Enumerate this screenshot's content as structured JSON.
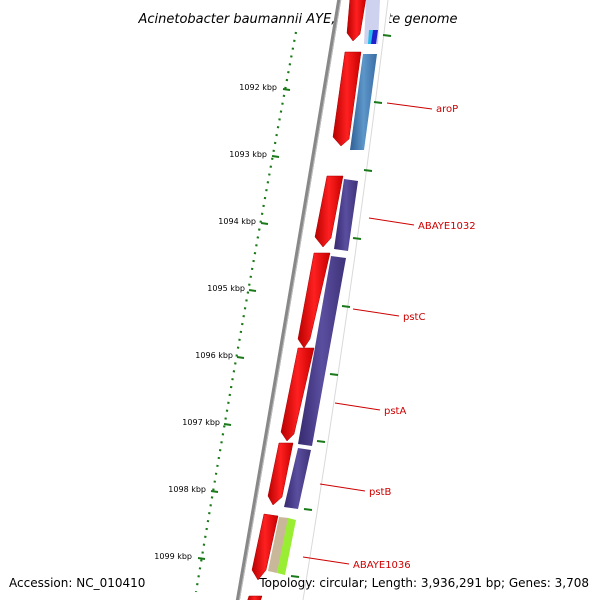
{
  "title": "Acinetobacter baumannii AYE, complete genome",
  "accession": "Accession: NC_010410",
  "topology": "Topology: circular; Length: 3,936,291 bp; Genes: 3,708",
  "ticks": [
    "1092 kbp",
    "1093 kbp",
    "1094 kbp",
    "1095 kbp",
    "1096 kbp",
    "1097 kbp",
    "1098 kbp",
    "1099 kbp"
  ],
  "genes": [
    "aroP",
    "ABAYE1032",
    "pstC",
    "pstA",
    "pstB",
    "ABAYE1036"
  ],
  "colors": {
    "forward": "#ee1111",
    "cog_blue": "#4f87bd",
    "cog_purple": "#4b3f8a",
    "cog_tan": "#c8b899",
    "cog_lime": "#99ee33",
    "tick": "#1a7a1a",
    "backbone": "#888888",
    "label": "#cc0000"
  }
}
